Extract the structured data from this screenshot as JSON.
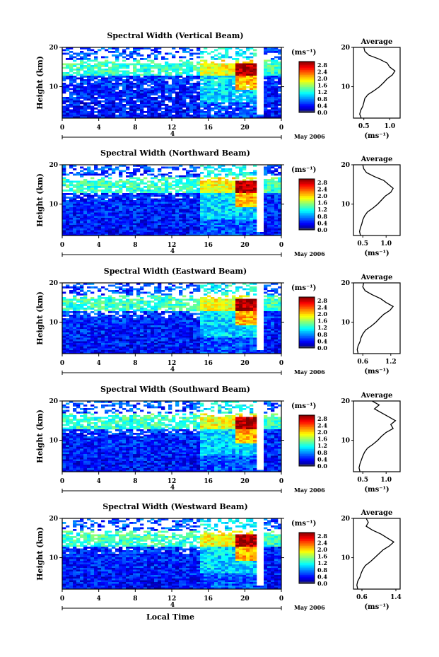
{
  "chart_data": [
    {
      "type": "heatmap",
      "title": "Spectral Width (Vertical Beam)",
      "ylabel": "Height (km)",
      "yticks": [
        "20",
        "10"
      ],
      "ylim": [
        2,
        20
      ],
      "xticks": [
        "0",
        "4",
        "8",
        "12",
        "16",
        "20",
        "0"
      ],
      "xlim": [
        0,
        24
      ],
      "day_label": "4",
      "date_label": "May 2006",
      "colorbar": {
        "unit_label": "(ms⁻¹)",
        "ticks": [
          "2.8",
          "2.4",
          "2.0",
          "1.6",
          "1.2",
          "0.8",
          "0.4",
          "0.0"
        ],
        "range": [
          0,
          3.0
        ]
      },
      "avg": {
        "title": "Average",
        "yticks": [
          "20",
          "10"
        ],
        "xticks": [
          "0.5",
          "1.0"
        ],
        "xlim": [
          0.3,
          1.2
        ],
        "xlabel": "(ms⁻¹)",
        "height": [
          2,
          3,
          4,
          5,
          6,
          7,
          8,
          9,
          10,
          11,
          12,
          13,
          14,
          15,
          16,
          17,
          18,
          19,
          20
        ],
        "width": [
          0.45,
          0.42,
          0.44,
          0.48,
          0.5,
          0.52,
          0.58,
          0.7,
          0.8,
          0.88,
          0.95,
          1.05,
          1.1,
          1.0,
          0.95,
          0.8,
          0.6,
          0.52,
          0.5
        ]
      }
    },
    {
      "type": "heatmap",
      "title": "Spectral Width (Northward Beam)",
      "ylabel": "Height (km)",
      "yticks": [
        "20",
        "10"
      ],
      "ylim": [
        2,
        20
      ],
      "xticks": [
        "0",
        "4",
        "8",
        "12",
        "16",
        "20",
        "0"
      ],
      "xlim": [
        0,
        24
      ],
      "day_label": "4",
      "date_label": "May 2006",
      "colorbar": {
        "unit_label": "(ms⁻¹)",
        "ticks": [
          "2.8",
          "2.4",
          "2.0",
          "1.6",
          "1.2",
          "0.8",
          "0.4",
          "0.0"
        ],
        "range": [
          0,
          3.0
        ]
      },
      "avg": {
        "title": "Average",
        "yticks": [
          "20",
          "10"
        ],
        "xticks": [
          "0.5",
          "1.0"
        ],
        "xlim": [
          0.3,
          1.3
        ],
        "xlabel": "(ms⁻¹)",
        "height": [
          2,
          3,
          4,
          5,
          6,
          7,
          8,
          9,
          10,
          11,
          12,
          13,
          14,
          15,
          16,
          17,
          18,
          19,
          20
        ],
        "width": [
          0.45,
          0.43,
          0.45,
          0.48,
          0.5,
          0.54,
          0.6,
          0.72,
          0.82,
          0.9,
          0.98,
          1.1,
          1.15,
          1.05,
          0.95,
          0.75,
          0.58,
          0.52,
          0.5
        ]
      }
    },
    {
      "type": "heatmap",
      "title": "Spectral Width (Eastward Beam)",
      "ylabel": "Height (km)",
      "yticks": [
        "20",
        "10"
      ],
      "ylim": [
        2,
        20
      ],
      "xticks": [
        "0",
        "4",
        "8",
        "12",
        "16",
        "20",
        "0"
      ],
      "xlim": [
        0,
        24
      ],
      "day_label": "4",
      "date_label": "May 2006",
      "colorbar": {
        "unit_label": "(ms⁻¹)",
        "ticks": [
          "2.8",
          "2.4",
          "2.0",
          "1.6",
          "1.2",
          "0.8",
          "0.4",
          "0.0"
        ],
        "range": [
          0,
          3.0
        ]
      },
      "avg": {
        "title": "Average",
        "yticks": [
          "20",
          "10"
        ],
        "xticks": [
          "0.6",
          "1.2"
        ],
        "xlim": [
          0.4,
          1.4
        ],
        "xlabel": "(ms⁻¹)",
        "height": [
          2,
          3,
          4,
          5,
          6,
          7,
          8,
          9,
          10,
          11,
          12,
          13,
          14,
          15,
          16,
          17,
          18,
          19,
          20
        ],
        "width": [
          0.5,
          0.48,
          0.5,
          0.54,
          0.56,
          0.6,
          0.66,
          0.78,
          0.88,
          0.96,
          1.05,
          1.18,
          1.25,
          1.1,
          0.98,
          0.8,
          0.65,
          0.6,
          0.62
        ]
      }
    },
    {
      "type": "heatmap",
      "title": "Spectral Width (Southward Beam)",
      "ylabel": "Height (km)",
      "yticks": [
        "20",
        "10"
      ],
      "ylim": [
        2,
        20
      ],
      "xticks": [
        "0",
        "4",
        "8",
        "12",
        "16",
        "20",
        "0"
      ],
      "xlim": [
        0,
        24
      ],
      "day_label": "4",
      "date_label": "May 2006",
      "colorbar": {
        "unit_label": "(ms⁻¹)",
        "ticks": [
          "2.8",
          "2.4",
          "2.0",
          "1.6",
          "1.2",
          "0.8",
          "0.4",
          "0.0"
        ],
        "range": [
          0,
          3.0
        ]
      },
      "avg": {
        "title": "Average",
        "yticks": [
          "20",
          "10"
        ],
        "xticks": [
          "0.5",
          "1.0"
        ],
        "xlim": [
          0.3,
          1.3
        ],
        "xlabel": "(ms⁻¹)",
        "height": [
          2,
          3,
          4,
          5,
          6,
          7,
          8,
          9,
          10,
          11,
          12,
          13,
          14,
          15,
          16,
          17,
          18,
          19,
          20
        ],
        "width": [
          0.44,
          0.42,
          0.44,
          0.47,
          0.5,
          0.54,
          0.6,
          0.72,
          0.82,
          0.9,
          1.0,
          1.15,
          1.1,
          1.2,
          1.05,
          0.9,
          0.75,
          0.85,
          0.7
        ]
      }
    },
    {
      "type": "heatmap",
      "title": "Spectral Width (Westward Beam)",
      "ylabel": "Height (km)",
      "yticks": [
        "20",
        "10"
      ],
      "ylim": [
        2,
        20
      ],
      "xticks": [
        "0",
        "4",
        "8",
        "12",
        "16",
        "20",
        "0"
      ],
      "xlim": [
        0,
        24
      ],
      "xlabel": "Local Time",
      "day_label": "4",
      "date_label": "May 2006",
      "colorbar": {
        "unit_label": "(ms⁻¹)",
        "ticks": [
          "2.8",
          "2.4",
          "2.0",
          "1.6",
          "1.2",
          "0.8",
          "0.4",
          "0.0"
        ],
        "range": [
          0,
          3.0
        ]
      },
      "avg": {
        "title": "Average",
        "yticks": [
          "20",
          "10"
        ],
        "xticks": [
          "0.6",
          "1.4"
        ],
        "xlim": [
          0.4,
          1.5
        ],
        "xlabel": "(ms⁻¹)",
        "height": [
          2,
          3,
          4,
          5,
          6,
          7,
          8,
          9,
          10,
          11,
          12,
          13,
          14,
          15,
          16,
          17,
          18,
          19,
          20
        ],
        "width": [
          0.5,
          0.48,
          0.5,
          0.55,
          0.58,
          0.62,
          0.68,
          0.8,
          0.9,
          1.0,
          1.1,
          1.25,
          1.35,
          1.2,
          1.05,
          0.85,
          0.7,
          0.75,
          0.7
        ]
      }
    }
  ]
}
